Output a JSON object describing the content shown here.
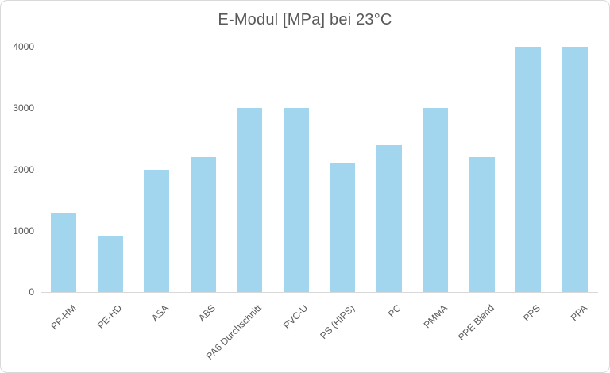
{
  "chart_data": {
    "type": "bar",
    "title": "E-Modul [MPa] bei 23°C",
    "categories": [
      "PP-HM",
      "PE-HD",
      "ASA",
      "ABS",
      "PA6 Durchschnitt",
      "PVC-U",
      "PS (HIPS)",
      "PC",
      "PMMA",
      "PPE Blend",
      "PPS",
      "PPA"
    ],
    "values": [
      1300,
      900,
      2000,
      2200,
      3000,
      3000,
      2100,
      2400,
      3000,
      2200,
      4000,
      4000
    ],
    "xlabel": "",
    "ylabel": "",
    "ylim": [
      0,
      4000
    ],
    "yticks": [
      0,
      1000,
      2000,
      3000,
      4000
    ],
    "grid": false,
    "legend": false,
    "colors": {
      "bar": "#A2D5EE",
      "text": "#595959",
      "axis": "#D9D9D9",
      "border": "#D9D9D9",
      "background": "#FFFFFF"
    }
  }
}
